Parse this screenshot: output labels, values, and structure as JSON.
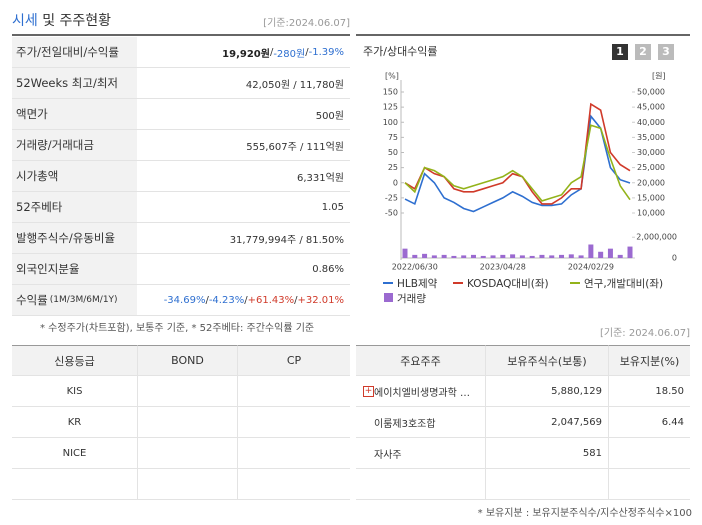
{
  "header": {
    "title_main": "시세",
    "title_rest": " 및 주주현황",
    "date": "[기준:2024.06.07]"
  },
  "summary": {
    "rows": [
      {
        "label": "주가/전일대비/수익률",
        "parts": [
          {
            "text": "19,920원",
            "tone": "strong"
          },
          {
            "text": " / "
          },
          {
            "text": "-280원",
            "tone": "down"
          },
          {
            "text": " / "
          },
          {
            "text": "-1.39%",
            "tone": "down"
          }
        ]
      },
      {
        "label": "52Weeks 최고/최저",
        "parts": [
          {
            "text": "42,050원 / 11,780원"
          }
        ]
      },
      {
        "label": "액면가",
        "parts": [
          {
            "text": "500원"
          }
        ]
      },
      {
        "label": "거래량/거래대금",
        "parts": [
          {
            "text": "555,607주 / 111억원"
          }
        ]
      },
      {
        "label": "시가총액",
        "parts": [
          {
            "text": "6,331억원"
          }
        ]
      },
      {
        "label": "52주베타",
        "parts": [
          {
            "text": "1.05"
          }
        ]
      },
      {
        "label": "발행주식수/유동비율",
        "parts": [
          {
            "text": "31,779,994주 / 81.50%"
          }
        ]
      },
      {
        "label": "외국인지분율",
        "parts": [
          {
            "text": "0.86%"
          }
        ]
      },
      {
        "label": "수익률",
        "label_sub": " (1M/3M/6M/1Y)",
        "parts": [
          {
            "text": "-34.69%",
            "tone": "down"
          },
          {
            "text": "/ "
          },
          {
            "text": "-4.23%",
            "tone": "down"
          },
          {
            "text": "/ "
          },
          {
            "text": "+61.43%",
            "tone": "up"
          },
          {
            "text": "/ "
          },
          {
            "text": "+32.01%",
            "tone": "up"
          }
        ]
      }
    ],
    "note": "* 수정주가(차트포함), 보통주 기준, * 52주베타: 주간수익률 기준"
  },
  "chart_data": {
    "type": "line",
    "title": "주가/상대수익률",
    "tabs": [
      "1",
      "2",
      "3"
    ],
    "y_unit": "[%]",
    "y2_unit": "[원]",
    "categories": [
      null,
      "2022/06/30",
      null,
      null,
      null,
      null,
      null,
      null,
      null,
      null,
      "2023/04/28",
      null,
      null,
      null,
      null,
      null,
      null,
      null,
      null,
      "2024/02/29",
      null,
      null,
      null,
      null
    ],
    "ylim": [
      -50,
      150
    ],
    "yticks": [
      150,
      125,
      100,
      75,
      50,
      25,
      0,
      -25,
      -50
    ],
    "y2lim": [
      10000,
      50000
    ],
    "y2ticks": [
      {
        "value": 50000,
        "label": "50,000"
      },
      {
        "value": 45000,
        "label": "45,000"
      },
      {
        "value": 40000,
        "label": "40,000"
      },
      {
        "value": 35000,
        "label": "35,000"
      },
      {
        "value": 30000,
        "label": "30,000"
      },
      {
        "value": 25000,
        "label": "25,000"
      },
      {
        "value": 20000,
        "label": "20,000"
      },
      {
        "value": 15000,
        "label": "15,000"
      },
      {
        "value": 10000,
        "label": "10,000"
      }
    ],
    "series": [
      {
        "name": "HLB제약",
        "color": "#2e6fd0",
        "axis": "y2",
        "values": [
          14600,
          13000,
          23000,
          20000,
          15000,
          13500,
          11500,
          10500,
          12000,
          13500,
          15000,
          17000,
          15500,
          13500,
          12500,
          12500,
          13000,
          16000,
          18000,
          42000,
          38000,
          25000,
          21000,
          19920
        ]
      },
      {
        "name": "KOSDAQ대비(좌)",
        "color": "#d03a2a",
        "values": [
          0,
          -10,
          25,
          15,
          10,
          -10,
          -15,
          -15,
          -10,
          -5,
          0,
          15,
          10,
          -15,
          -35,
          -35,
          -25,
          -10,
          -10,
          130,
          120,
          50,
          30,
          20
        ]
      },
      {
        "name": "연구,개발대비(좌)",
        "color": "#93b31a",
        "values": [
          0,
          -15,
          25,
          20,
          10,
          -5,
          -10,
          -5,
          0,
          5,
          10,
          20,
          10,
          -10,
          -30,
          -25,
          -20,
          0,
          10,
          95,
          90,
          40,
          -5,
          -28
        ]
      }
    ],
    "volume": {
      "name": "거래량",
      "color": "#9b6ad0",
      "ylim": [
        0,
        2600000
      ],
      "yticks": [
        {
          "value": 2000000,
          "label": "2,000,000"
        },
        0
      ],
      "values": [
        900000,
        300000,
        400000,
        250000,
        300000,
        200000,
        250000,
        300000,
        200000,
        250000,
        300000,
        350000,
        250000,
        200000,
        300000,
        250000,
        300000,
        350000,
        250000,
        1300000,
        600000,
        900000,
        300000,
        1100000
      ]
    },
    "date": "[기준: 2024.06.07]"
  },
  "credit": {
    "headers": [
      "신용등급",
      "BOND",
      "CP"
    ],
    "rows": [
      [
        "KIS",
        "",
        ""
      ],
      [
        "KR",
        "",
        ""
      ],
      [
        "NICE",
        "",
        ""
      ],
      [
        "",
        "",
        ""
      ]
    ]
  },
  "holders": {
    "headers": [
      "주요주주",
      "보유주식수(보통)",
      "보유지분(%)"
    ],
    "rows": [
      [
        "에이치엘비생명과학 …",
        "5,880,129",
        "18.50"
      ],
      [
        "이룸제3호조합",
        "2,047,569",
        "6.44"
      ],
      [
        "자사주",
        "581",
        ""
      ],
      [
        "",
        "",
        ""
      ]
    ],
    "note": "* 보유지분 : 보유지분주식수/지수산정주식수×100"
  }
}
